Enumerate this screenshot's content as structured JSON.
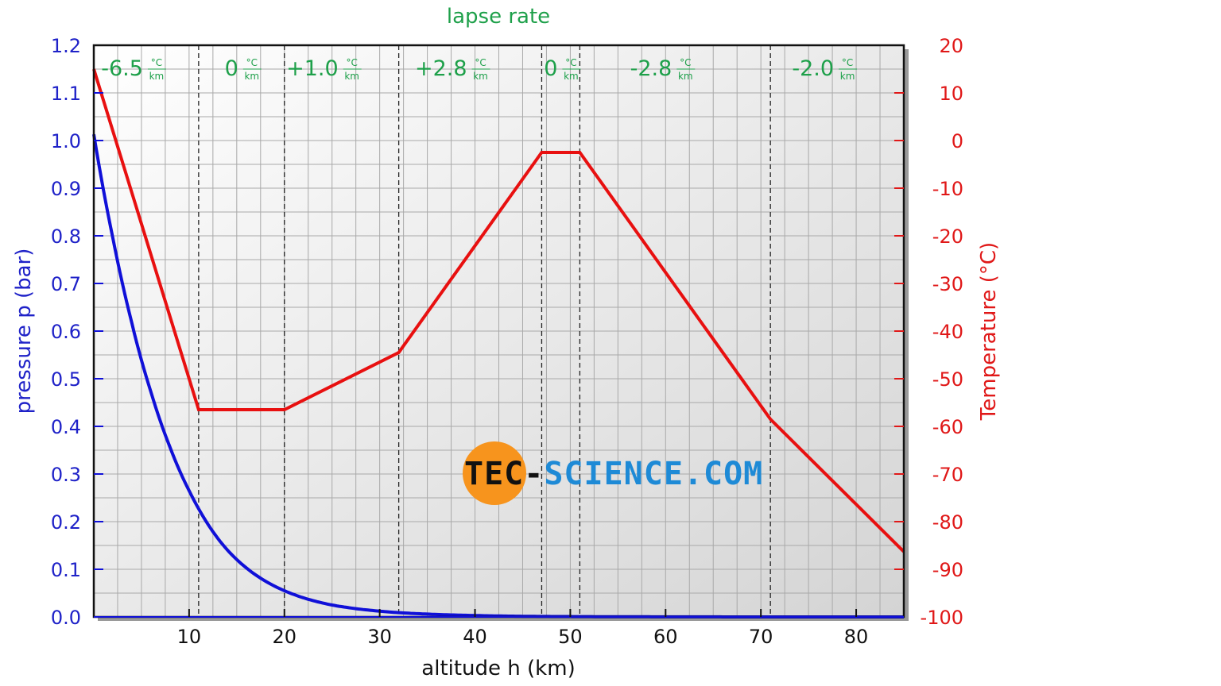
{
  "chart_data": {
    "type": "line",
    "title": "lapse rate",
    "xlabel": "altitude h (km)",
    "ylabel_left": "pressure p (bar)",
    "ylabel_right": "Temperature (°C)",
    "xlim": [
      0,
      85
    ],
    "ylim_left": [
      0.0,
      1.2
    ],
    "ylim_right": [
      -100,
      20
    ],
    "grid": true,
    "x_ticks": [
      10,
      20,
      30,
      40,
      50,
      60,
      70,
      80
    ],
    "y_ticks_left": [
      "0.0",
      "0.1",
      "0.2",
      "0.3",
      "0.4",
      "0.5",
      "0.6",
      "0.7",
      "0.8",
      "0.9",
      "1.0",
      "1.1",
      "1.2"
    ],
    "y_ticks_right": [
      "-100",
      "-90",
      "-80",
      "-70",
      "-60",
      "-50",
      "-40",
      "-30",
      "-20",
      "-10",
      "0",
      "10",
      "20"
    ],
    "layer_boundaries_km": [
      11,
      20,
      32,
      47,
      51,
      71
    ],
    "lapse_rates": [
      {
        "value": "-6.5",
        "unit_num": "°C",
        "unit_den": "km",
        "x_center": 5.5
      },
      {
        "value": "0",
        "unit_num": "°C",
        "unit_den": "km",
        "x_center": 15.5
      },
      {
        "value": "+1.0",
        "unit_num": "°C",
        "unit_den": "km",
        "x_center": 26
      },
      {
        "value": "+2.8",
        "unit_num": "°C",
        "unit_den": "km",
        "x_center": 39.5
      },
      {
        "value": "0",
        "unit_num": "°C",
        "unit_den": "km",
        "x_center": 49
      },
      {
        "value": "-2.8",
        "unit_num": "°C",
        "unit_den": "km",
        "x_center": 61
      },
      {
        "value": "-2.0",
        "unit_num": "°C",
        "unit_den": "km",
        "x_center": 78
      }
    ],
    "series": [
      {
        "name": "pressure",
        "axis": "left",
        "color": "#1010d8",
        "x": [
          0,
          2,
          4,
          6,
          8,
          10,
          11,
          14,
          17,
          20,
          25,
          32,
          40,
          47,
          51,
          60,
          71,
          85
        ],
        "values": [
          1.013,
          0.795,
          0.616,
          0.472,
          0.356,
          0.265,
          0.227,
          0.141,
          0.088,
          0.055,
          0.025,
          0.009,
          0.003,
          0.001,
          0.0007,
          0.0002,
          4e-05,
          0.0
        ]
      },
      {
        "name": "temperature",
        "axis": "right",
        "color": "#e81010",
        "x": [
          0,
          11,
          20,
          32,
          47,
          51,
          71,
          85
        ],
        "values": [
          15,
          -56.5,
          -56.5,
          -44.5,
          -2.5,
          -2.5,
          -58.5,
          -86.3
        ]
      }
    ]
  },
  "watermark": {
    "part1": "TEC-",
    "part2": "SCIENCE",
    "part3": ".COM",
    "circle_color": "#f7941d",
    "blue": "#1e8ad6",
    "black": "#111111"
  }
}
